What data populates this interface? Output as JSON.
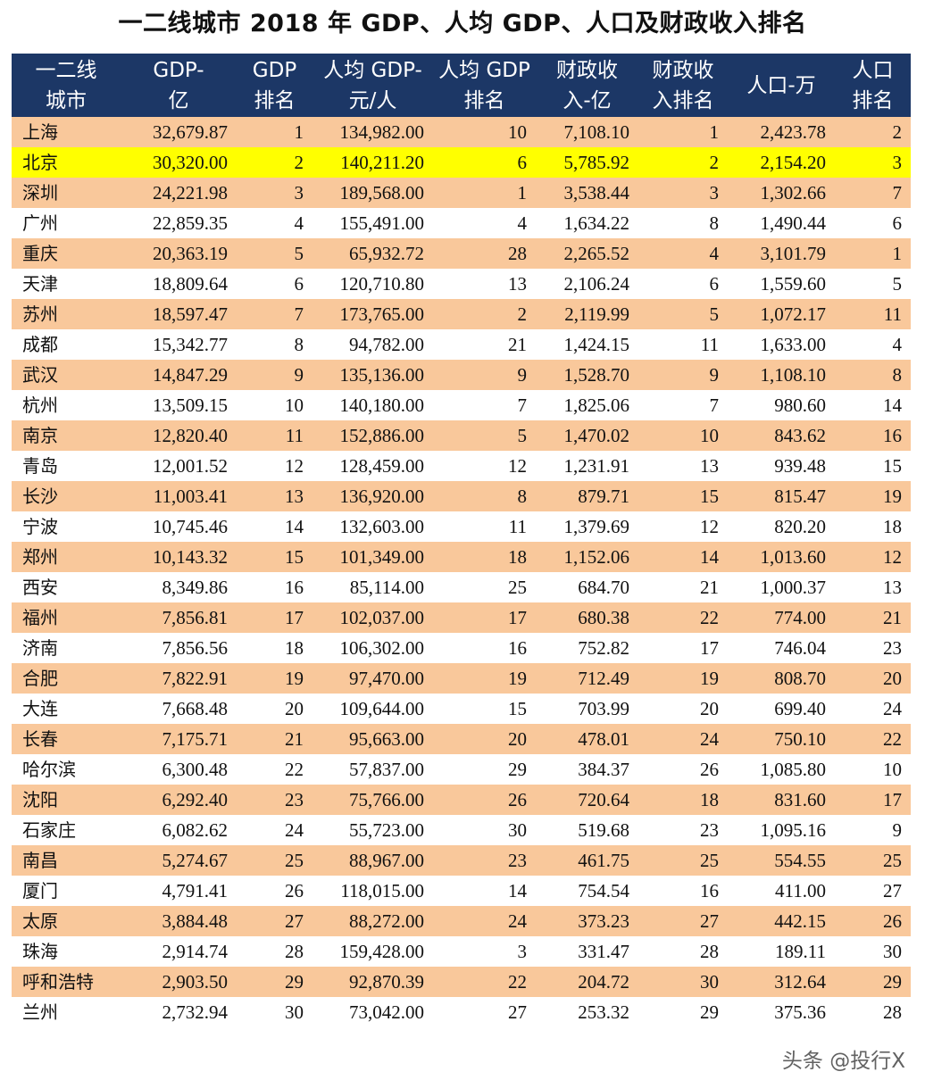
{
  "title": "一二线城市 2018 年 GDP、人均 GDP、人口及财政收入排名",
  "headers": [
    [
      "一二线",
      "城市"
    ],
    [
      "GDP-",
      "亿"
    ],
    [
      "GDP",
      "排名"
    ],
    [
      "人均 GDP-",
      "元/人"
    ],
    [
      "人均 GDP",
      "排名"
    ],
    [
      "财政收",
      "入-亿"
    ],
    [
      "财政收",
      "入排名"
    ],
    [
      "人口-万"
    ],
    [
      "人口",
      "排名"
    ]
  ],
  "highlight_row": "北京",
  "colors": {
    "header_bg": "#1c3766",
    "row_alt": "#f9c89b",
    "highlight": "#ffff00"
  },
  "rows": [
    [
      "上海",
      "32,679.87",
      "1",
      "134,982.00",
      "10",
      "7,108.10",
      "1",
      "2,423.78",
      "2"
    ],
    [
      "北京",
      "30,320.00",
      "2",
      "140,211.20",
      "6",
      "5,785.92",
      "2",
      "2,154.20",
      "3"
    ],
    [
      "深圳",
      "24,221.98",
      "3",
      "189,568.00",
      "1",
      "3,538.44",
      "3",
      "1,302.66",
      "7"
    ],
    [
      "广州",
      "22,859.35",
      "4",
      "155,491.00",
      "4",
      "1,634.22",
      "8",
      "1,490.44",
      "6"
    ],
    [
      "重庆",
      "20,363.19",
      "5",
      "65,932.72",
      "28",
      "2,265.52",
      "4",
      "3,101.79",
      "1"
    ],
    [
      "天津",
      "18,809.64",
      "6",
      "120,710.80",
      "13",
      "2,106.24",
      "6",
      "1,559.60",
      "5"
    ],
    [
      "苏州",
      "18,597.47",
      "7",
      "173,765.00",
      "2",
      "2,119.99",
      "5",
      "1,072.17",
      "11"
    ],
    [
      "成都",
      "15,342.77",
      "8",
      "94,782.00",
      "21",
      "1,424.15",
      "11",
      "1,633.00",
      "4"
    ],
    [
      "武汉",
      "14,847.29",
      "9",
      "135,136.00",
      "9",
      "1,528.70",
      "9",
      "1,108.10",
      "8"
    ],
    [
      "杭州",
      "13,509.15",
      "10",
      "140,180.00",
      "7",
      "1,825.06",
      "7",
      "980.60",
      "14"
    ],
    [
      "南京",
      "12,820.40",
      "11",
      "152,886.00",
      "5",
      "1,470.02",
      "10",
      "843.62",
      "16"
    ],
    [
      "青岛",
      "12,001.52",
      "12",
      "128,459.00",
      "12",
      "1,231.91",
      "13",
      "939.48",
      "15"
    ],
    [
      "长沙",
      "11,003.41",
      "13",
      "136,920.00",
      "8",
      "879.71",
      "15",
      "815.47",
      "19"
    ],
    [
      "宁波",
      "10,745.46",
      "14",
      "132,603.00",
      "11",
      "1,379.69",
      "12",
      "820.20",
      "18"
    ],
    [
      "郑州",
      "10,143.32",
      "15",
      "101,349.00",
      "18",
      "1,152.06",
      "14",
      "1,013.60",
      "12"
    ],
    [
      "西安",
      "8,349.86",
      "16",
      "85,114.00",
      "25",
      "684.70",
      "21",
      "1,000.37",
      "13"
    ],
    [
      "福州",
      "7,856.81",
      "17",
      "102,037.00",
      "17",
      "680.38",
      "22",
      "774.00",
      "21"
    ],
    [
      "济南",
      "7,856.56",
      "18",
      "106,302.00",
      "16",
      "752.82",
      "17",
      "746.04",
      "23"
    ],
    [
      "合肥",
      "7,822.91",
      "19",
      "97,470.00",
      "19",
      "712.49",
      "19",
      "808.70",
      "20"
    ],
    [
      "大连",
      "7,668.48",
      "20",
      "109,644.00",
      "15",
      "703.99",
      "20",
      "699.40",
      "24"
    ],
    [
      "长春",
      "7,175.71",
      "21",
      "95,663.00",
      "20",
      "478.01",
      "24",
      "750.10",
      "22"
    ],
    [
      "哈尔滨",
      "6,300.48",
      "22",
      "57,837.00",
      "29",
      "384.37",
      "26",
      "1,085.80",
      "10"
    ],
    [
      "沈阳",
      "6,292.40",
      "23",
      "75,766.00",
      "26",
      "720.64",
      "18",
      "831.60",
      "17"
    ],
    [
      "石家庄",
      "6,082.62",
      "24",
      "55,723.00",
      "30",
      "519.68",
      "23",
      "1,095.16",
      "9"
    ],
    [
      "南昌",
      "5,274.67",
      "25",
      "88,967.00",
      "23",
      "461.75",
      "25",
      "554.55",
      "25"
    ],
    [
      "厦门",
      "4,791.41",
      "26",
      "118,015.00",
      "14",
      "754.54",
      "16",
      "411.00",
      "27"
    ],
    [
      "太原",
      "3,884.48",
      "27",
      "88,272.00",
      "24",
      "373.23",
      "27",
      "442.15",
      "26"
    ],
    [
      "珠海",
      "2,914.74",
      "28",
      "159,428.00",
      "3",
      "331.47",
      "28",
      "189.11",
      "30"
    ],
    [
      "呼和浩特",
      "2,903.50",
      "29",
      "92,870.39",
      "22",
      "204.72",
      "30",
      "312.64",
      "29"
    ],
    [
      "兰州",
      "2,732.94",
      "30",
      "73,042.00",
      "27",
      "253.32",
      "29",
      "375.36",
      "28"
    ]
  ],
  "watermark": "头条 @投行X"
}
